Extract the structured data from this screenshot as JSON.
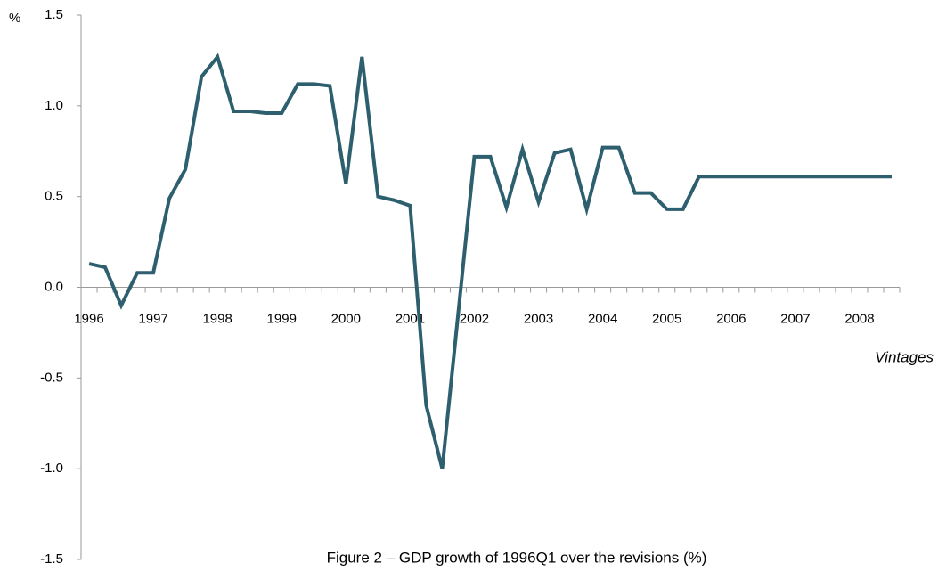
{
  "chart_data": {
    "type": "line",
    "title": "Figure 2 – GDP growth of 1996Q1 over the revisions (%)",
    "y_label": "%",
    "x_label": "Vintages",
    "categories": [
      "1996",
      null,
      null,
      null,
      "1997",
      null,
      null,
      null,
      "1998",
      null,
      null,
      null,
      "1999",
      null,
      null,
      null,
      "2000",
      null,
      null,
      null,
      "2001",
      null,
      null,
      null,
      "2002",
      null,
      null,
      null,
      "2003",
      null,
      null,
      null,
      "2004",
      null,
      null,
      null,
      "2005",
      null,
      null,
      null,
      "2006",
      null,
      null,
      null,
      "2007",
      null,
      null,
      null,
      "2008",
      null,
      null
    ],
    "values": [
      0.13,
      0.11,
      -0.1,
      0.08,
      0.08,
      0.49,
      0.65,
      1.16,
      1.27,
      0.97,
      0.97,
      0.96,
      0.96,
      1.12,
      1.12,
      1.11,
      0.57,
      1.27,
      0.5,
      0.48,
      0.45,
      -0.65,
      -1.0,
      -0.14,
      0.72,
      0.72,
      0.44,
      0.76,
      0.47,
      0.74,
      0.76,
      0.43,
      0.77,
      0.77,
      0.52,
      0.52,
      0.43,
      0.43,
      0.61,
      0.61,
      0.61,
      0.61,
      0.61,
      0.61,
      0.61,
      0.61,
      0.61,
      0.61,
      0.61,
      0.61,
      0.61
    ],
    "color": "#2d5f6f",
    "ylim": [
      -1.5,
      1.5
    ],
    "yticks": [
      1.5,
      {
        "value": 1.0,
        "label": "1.0"
      },
      0.5,
      {
        "value": 0,
        "label": "0.0"
      },
      -0.5,
      {
        "value": -1.0,
        "label": "-1.0"
      },
      -1.5
    ],
    "grid": false
  }
}
